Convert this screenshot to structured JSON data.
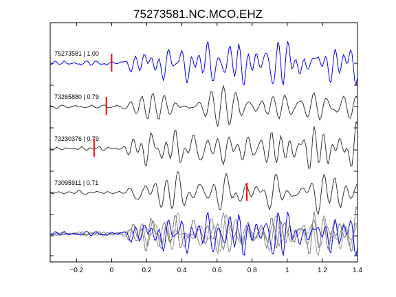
{
  "chart_data": {
    "type": "line",
    "title": "75273581.NC.MCO.EHZ",
    "xlabel": "",
    "ylabel": "",
    "xlim": [
      -0.35,
      1.4
    ],
    "grid": false,
    "x_ticks": [
      {
        "value": -0.2,
        "label": "−0.2"
      },
      {
        "value": 0,
        "label": "0"
      },
      {
        "value": 0.2,
        "label": "0.2"
      },
      {
        "value": 0.4,
        "label": "0.4"
      },
      {
        "value": 0.6,
        "label": "0.6"
      },
      {
        "value": 0.8,
        "label": "0.8"
      },
      {
        "value": 1.0,
        "label": "1"
      },
      {
        "value": 1.2,
        "label": "1.2"
      },
      {
        "value": 1.4,
        "label": "1.4"
      }
    ],
    "traces": [
      {
        "label": "75273581 | 1.00",
        "color": "#0000ff",
        "pick_time": 0.0,
        "seed": 1
      },
      {
        "label": "73265880 | 0.79",
        "color": "#333333",
        "pick_time": -0.03,
        "seed": 2
      },
      {
        "label": "73230376 | 0.79",
        "color": "#333333",
        "pick_time": -0.1,
        "seed": 3
      },
      {
        "label": "73095911 | 0.71",
        "color": "#333333",
        "pick_time": 0.77,
        "seed": 4
      }
    ],
    "overlay": {
      "colors": [
        "#888888",
        "#777777",
        "#999999",
        "#0000ff"
      ]
    },
    "pick_color": "#ff0000"
  }
}
